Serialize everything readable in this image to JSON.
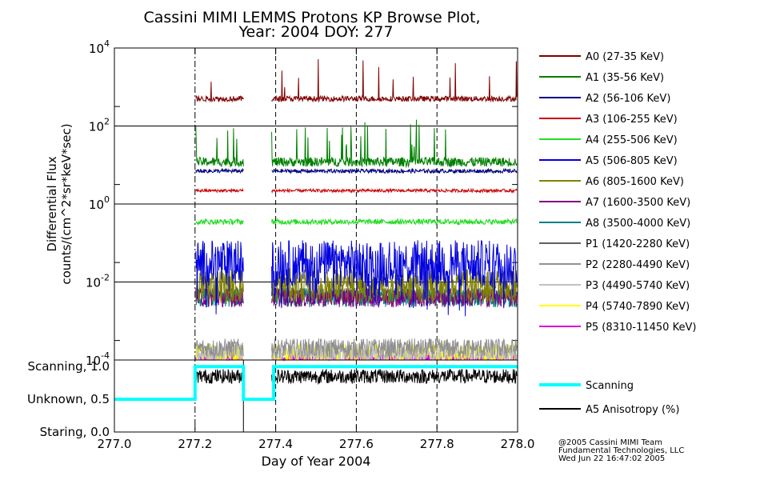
{
  "chart_data": {
    "type": "line",
    "title": "Cassini MIMI LEMMS Protons KP Browse Plot,",
    "subtitle": "Year: 2004 DOY: 277",
    "xlabel": "Day of Year 2004",
    "xlim": [
      277.0,
      278.0
    ],
    "x_ticks": [
      "277.0",
      "277.2",
      "277.4",
      "277.6",
      "277.8",
      "278.0"
    ],
    "vlines": [
      277.2,
      277.4,
      277.6,
      277.8
    ],
    "data_gap": [
      277.32,
      277.39
    ],
    "flux_panel": {
      "ylabel_line1": "Differential Flux",
      "ylabel_line2": "counts/(cm^2*sr*keV*sec)",
      "yscale": "log",
      "ylim": [
        0.0001,
        10000
      ],
      "y_ticks": [
        {
          "base": "10",
          "exp": "4"
        },
        {
          "base": "10",
          "exp": "2"
        },
        {
          "base": "10",
          "exp": "0"
        },
        {
          "base": "10",
          "exp": "-2"
        },
        {
          "base": "10",
          "exp": "-4"
        }
      ],
      "series": [
        {
          "name": "A0 (27-35 KeV)",
          "color": "#800000",
          "level": 500
        },
        {
          "name": "A1 (35-56 KeV)",
          "color": "#008000",
          "level": 12
        },
        {
          "name": "A2 (56-106 KeV)",
          "color": "#000080",
          "level": 7
        },
        {
          "name": "A3 (106-255 KeV)",
          "color": "#cc0000",
          "level": 2.2
        },
        {
          "name": "A4 (255-506 KeV)",
          "color": "#22dd22",
          "level": 0.35
        },
        {
          "name": "A5 (506-805 KeV)",
          "color": "#0000dd",
          "level": 0.03
        },
        {
          "name": "A6 (805-1600 KeV)",
          "color": "#808000",
          "level": 0.008
        },
        {
          "name": "A7 (1600-3500 KeV)",
          "color": "#800080",
          "level": 0.004
        },
        {
          "name": "A8 (3500-4000 KeV)",
          "color": "#008080",
          "level": 0.004
        },
        {
          "name": "P1 (1420-2280 KeV)",
          "color": "#606060",
          "level": 0.005
        },
        {
          "name": "P2 (2280-4490 KeV)",
          "color": "#909090",
          "level": 0.0002
        },
        {
          "name": "P3 (4490-5740 KeV)",
          "color": "#c0c0c0",
          "level": 0.00015
        },
        {
          "name": "P4 (5740-7890 KeV)",
          "color": "#ffff00",
          "level": 0.00015
        },
        {
          "name": "P5 (8310-11450 KeV)",
          "color": "#dd00dd",
          "level": 0.0001
        }
      ]
    },
    "mode_panel": {
      "ylim": [
        0.0,
        1.1
      ],
      "y_ticks": [
        "Scanning, 1.0",
        "Unknown, 0.5",
        "Staring, 0.0"
      ],
      "series": [
        {
          "name": "Scanning",
          "color": "#00ffff",
          "x": [
            277.0,
            277.2,
            277.2,
            277.32,
            277.32,
            277.395,
            277.395,
            278.0
          ],
          "y": [
            0.5,
            0.5,
            1.0,
            1.0,
            0.5,
            0.5,
            1.0,
            1.0
          ]
        },
        {
          "name": "A5 Anisotropy (%)",
          "color": "#000000",
          "level": 0.85
        }
      ]
    },
    "credits": [
      "@2005 Cassini MIMI Team",
      "Fundamental Technologies, LLC",
      "Wed Jun 22 16:47:02 2005"
    ]
  }
}
